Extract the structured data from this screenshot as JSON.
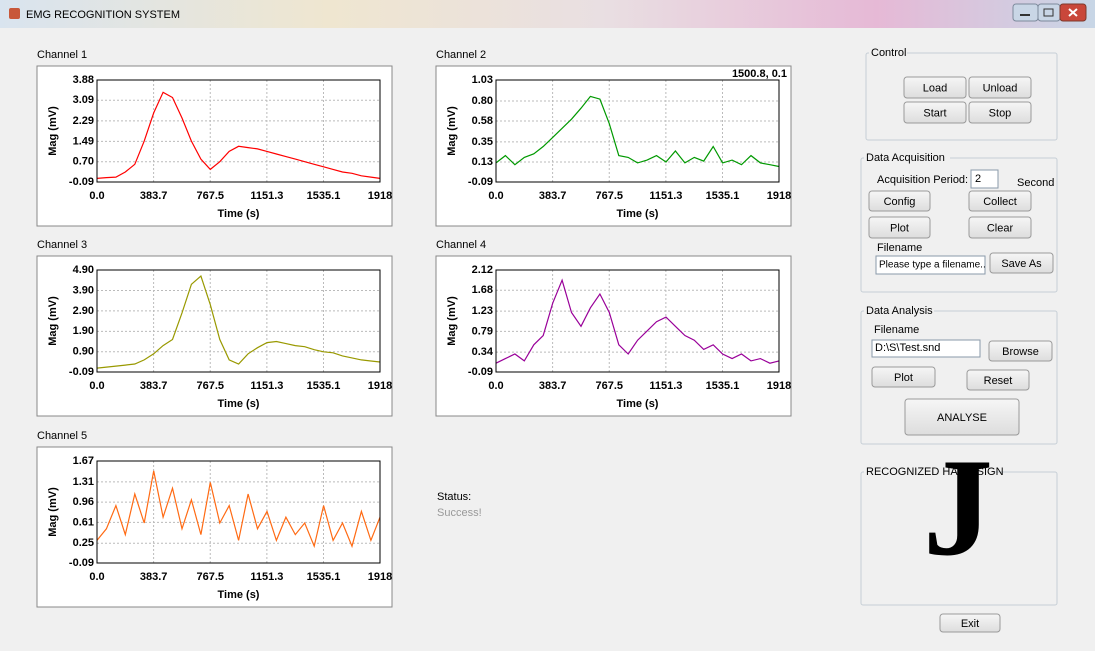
{
  "window": {
    "title": "EMG RECOGNITION SYSTEM"
  },
  "chart_data": [
    {
      "type": "line",
      "title": "Channel 1",
      "x_label": "Time (s)",
      "y_label": "Mag (mV)",
      "color": "#ff0000",
      "grid": true,
      "x": [
        0,
        64,
        128,
        192,
        256,
        320,
        384,
        448,
        512,
        576,
        640,
        704,
        768,
        832,
        896,
        960,
        1024,
        1088,
        1152,
        1216,
        1280,
        1344,
        1408,
        1472,
        1536,
        1600,
        1664,
        1728,
        1792,
        1856,
        1918
      ],
      "values": [
        0.05,
        0.08,
        0.1,
        0.3,
        0.6,
        1.5,
        2.6,
        3.4,
        3.2,
        2.4,
        1.5,
        0.8,
        0.4,
        0.7,
        1.1,
        1.3,
        1.25,
        1.2,
        1.1,
        1.0,
        0.9,
        0.8,
        0.7,
        0.6,
        0.5,
        0.4,
        0.3,
        0.25,
        0.15,
        0.1,
        0.05
      ],
      "xlim": [
        0,
        1918
      ],
      "xticks": [
        {
          "value": 0,
          "label": "0.0"
        },
        383.7,
        767.5,
        1151.3,
        1535.1,
        1918
      ],
      "ylim": [
        -0.09,
        3.88
      ],
      "yticks": [
        -0.09,
        {
          "value": 0.7,
          "label": "0.70"
        },
        1.49,
        2.29,
        3.09,
        3.88
      ]
    },
    {
      "type": "line",
      "title": "Channel 2",
      "x_label": "Time (s)",
      "y_label": "Mag (mV)",
      "color": "#009900",
      "grid": true,
      "annotation": "1500.8, 0.1",
      "x": [
        0,
        64,
        128,
        192,
        256,
        320,
        384,
        448,
        512,
        576,
        640,
        704,
        768,
        832,
        896,
        960,
        1024,
        1088,
        1152,
        1216,
        1280,
        1344,
        1408,
        1472,
        1536,
        1600,
        1664,
        1728,
        1792,
        1856,
        1918
      ],
      "values": [
        0.12,
        0.2,
        0.1,
        0.18,
        0.22,
        0.3,
        0.4,
        0.5,
        0.6,
        0.72,
        0.85,
        0.82,
        0.55,
        0.2,
        0.18,
        0.12,
        0.15,
        0.2,
        0.13,
        0.25,
        0.12,
        0.18,
        0.14,
        0.3,
        0.12,
        0.15,
        0.1,
        0.2,
        0.12,
        0.1,
        0.08
      ],
      "xlim": [
        0,
        1918
      ],
      "xticks": [
        {
          "value": 0,
          "label": "0.0"
        },
        383.7,
        767.5,
        1151.3,
        1535.1,
        1918
      ],
      "ylim": [
        -0.09,
        1.03
      ],
      "yticks": [
        -0.09,
        0.13,
        0.35,
        0.58,
        {
          "value": 0.8,
          "label": "0.80"
        },
        1.03
      ]
    },
    {
      "type": "line",
      "title": "Channel 3",
      "x_label": "Time (s)",
      "y_label": "Mag (mV)",
      "color": "#999900",
      "grid": true,
      "x": [
        0,
        64,
        128,
        192,
        256,
        320,
        384,
        448,
        512,
        576,
        640,
        704,
        768,
        832,
        896,
        960,
        1024,
        1088,
        1152,
        1216,
        1280,
        1344,
        1408,
        1472,
        1536,
        1600,
        1664,
        1728,
        1792,
        1856,
        1918
      ],
      "values": [
        0.1,
        0.15,
        0.2,
        0.25,
        0.3,
        0.5,
        0.8,
        1.2,
        1.5,
        2.8,
        4.2,
        4.6,
        3.2,
        1.5,
        0.5,
        0.3,
        0.8,
        1.1,
        1.35,
        1.4,
        1.3,
        1.2,
        1.15,
        1.0,
        0.9,
        0.85,
        0.7,
        0.6,
        0.5,
        0.45,
        0.4
      ],
      "xlim": [
        0,
        1918
      ],
      "xticks": [
        {
          "value": 0,
          "label": "0.0"
        },
        383.7,
        767.5,
        1151.3,
        1535.1,
        1918
      ],
      "ylim": [
        -0.09,
        4.9
      ],
      "yticks": [
        -0.09,
        {
          "value": 0.9,
          "label": "0.90"
        },
        {
          "value": 1.9,
          "label": "1.90"
        },
        {
          "value": 2.9,
          "label": "2.90"
        },
        {
          "value": 3.9,
          "label": "3.90"
        },
        {
          "value": 4.9,
          "label": "4.90"
        }
      ]
    },
    {
      "type": "line",
      "title": "Channel 4",
      "x_label": "Time (s)",
      "y_label": "Mag (mV)",
      "color": "#990099",
      "grid": true,
      "x": [
        0,
        64,
        128,
        192,
        256,
        320,
        384,
        448,
        512,
        576,
        640,
        704,
        768,
        832,
        896,
        960,
        1024,
        1088,
        1152,
        1216,
        1280,
        1344,
        1408,
        1472,
        1536,
        1600,
        1664,
        1728,
        1792,
        1856,
        1918
      ],
      "values": [
        0.1,
        0.2,
        0.3,
        0.15,
        0.5,
        0.7,
        1.4,
        1.9,
        1.2,
        0.9,
        1.3,
        1.6,
        1.2,
        0.5,
        0.3,
        0.6,
        0.8,
        1.0,
        1.1,
        0.9,
        0.7,
        0.6,
        0.4,
        0.5,
        0.3,
        0.2,
        0.3,
        0.15,
        0.2,
        0.1,
        0.15
      ],
      "xlim": [
        0,
        1918
      ],
      "xticks": [
        {
          "value": 0,
          "label": "0.0"
        },
        383.7,
        767.5,
        1151.3,
        1535.1,
        1918
      ],
      "ylim": [
        -0.09,
        2.12
      ],
      "yticks": [
        -0.09,
        0.34,
        0.79,
        1.23,
        1.68,
        2.12
      ]
    },
    {
      "type": "line",
      "title": "Channel 5",
      "x_label": "Time (s)",
      "y_label": "Mag (mV)",
      "color": "#ff6a13",
      "grid": true,
      "x": [
        0,
        64,
        128,
        192,
        256,
        320,
        384,
        448,
        512,
        576,
        640,
        704,
        768,
        832,
        896,
        960,
        1024,
        1088,
        1152,
        1216,
        1280,
        1344,
        1408,
        1472,
        1536,
        1600,
        1664,
        1728,
        1792,
        1856,
        1918
      ],
      "values": [
        0.3,
        0.5,
        0.9,
        0.4,
        1.1,
        0.6,
        1.5,
        0.7,
        1.2,
        0.5,
        1.0,
        0.4,
        1.3,
        0.6,
        0.9,
        0.3,
        1.1,
        0.5,
        0.8,
        0.3,
        0.7,
        0.4,
        0.6,
        0.2,
        0.9,
        0.3,
        0.6,
        0.2,
        0.8,
        0.3,
        0.7
      ],
      "xlim": [
        0,
        1918
      ],
      "xticks": [
        {
          "value": 0,
          "label": "0.0"
        },
        383.7,
        767.5,
        1151.3,
        1535.1,
        1918
      ],
      "ylim": [
        -0.09,
        1.67
      ],
      "yticks": [
        -0.09,
        0.25,
        0.61,
        0.96,
        1.31,
        1.67
      ]
    }
  ],
  "control": {
    "title": "Control",
    "buttons": [
      "Load",
      "Unload",
      "Start",
      "Stop"
    ]
  },
  "acquisition": {
    "title": "Data Acquisition",
    "period_label": "Acquisition Period:",
    "period": 2,
    "unit": "Second",
    "buttons": [
      "Config",
      "Collect",
      "Plot",
      "Clear"
    ],
    "filename_label": "Filename",
    "filename": "Please type a filename..",
    "save": "Save As"
  },
  "analysis": {
    "title": "Data Analysis",
    "filename_label": "Filename",
    "filename": "D:\\S\\Test.snd",
    "buttons": [
      "Browse",
      "Plot",
      "Reset"
    ],
    "analyse": "ANALYSE"
  },
  "result": {
    "title": "RECOGNIZED HAND SIGN",
    "sign": "J"
  },
  "status": {
    "label": "Status:",
    "text": "Success!"
  },
  "exit": "Exit"
}
